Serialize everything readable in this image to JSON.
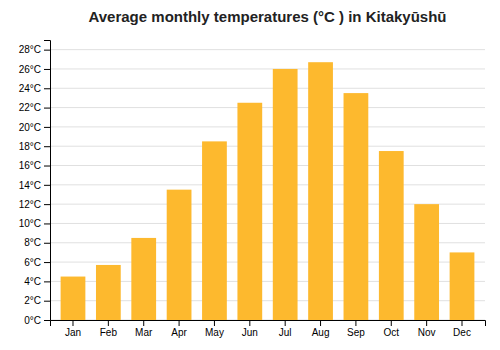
{
  "chart_data": {
    "type": "bar",
    "title": "Average monthly temperatures (°C ) in Kitakyūshū",
    "categories": [
      "Jan",
      "Feb",
      "Mar",
      "Apr",
      "May",
      "Jun",
      "Jul",
      "Aug",
      "Sep",
      "Oct",
      "Nov",
      "Dec"
    ],
    "values": [
      4.5,
      5.7,
      8.5,
      13.5,
      18.5,
      22.5,
      26.0,
      26.7,
      23.5,
      17.5,
      12.0,
      7.0
    ],
    "color": "#FDB92E",
    "ylim": [
      0,
      29
    ],
    "yticks": [
      {
        "value": 0,
        "label": "0°C"
      },
      {
        "value": 2,
        "label": "2°C"
      },
      {
        "value": 4,
        "label": "4°C"
      },
      {
        "value": 6,
        "label": "6°C"
      },
      {
        "value": 8,
        "label": "8°C"
      },
      {
        "value": 10,
        "label": "10°C"
      },
      {
        "value": 12,
        "label": "12°C"
      },
      {
        "value": 14,
        "label": "14°C"
      },
      {
        "value": 16,
        "label": "16°C"
      },
      {
        "value": 18,
        "label": "18°C"
      },
      {
        "value": 20,
        "label": "20°C"
      },
      {
        "value": 22,
        "label": "22°C"
      },
      {
        "value": 24,
        "label": "24°C"
      },
      {
        "value": 26,
        "label": "26°C"
      },
      {
        "value": 28,
        "label": "28°C"
      }
    ],
    "grid": true
  }
}
